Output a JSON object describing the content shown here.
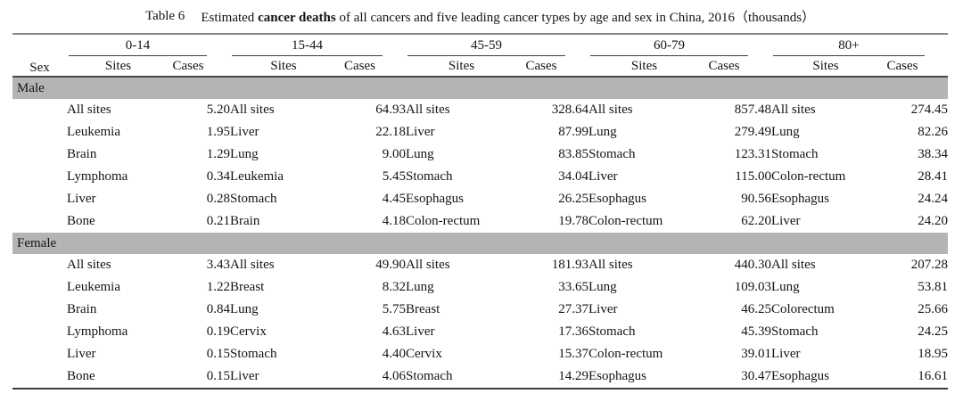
{
  "title": {
    "label": "Table 6",
    "text_before_bold": "Estimated ",
    "bold_text": "cancer deaths",
    "text_after_bold": " of all cancers and five leading cancer types by age and sex in China, 2016（thousands）"
  },
  "header": {
    "sex_label": "Sex",
    "age_groups": [
      "0-14",
      "15-44",
      "45-59",
      "60-79",
      "80+"
    ],
    "sites_label": "Sites",
    "cases_label": "Cases"
  },
  "colors": {
    "band_gray": "#b4b4b4",
    "rule_light": "#8a8a8a",
    "rule_dark": "#3d3d3d",
    "text": "#141414"
  },
  "sections": [
    {
      "sex": "Male",
      "rows": [
        {
          "cells": [
            {
              "site": "All sites",
              "cases": "5.20"
            },
            {
              "site": "All sites",
              "cases": "64.93"
            },
            {
              "site": "All sites",
              "cases": "328.64"
            },
            {
              "site": "All sites",
              "cases": "857.48"
            },
            {
              "site": "All sites",
              "cases": "274.45"
            }
          ]
        },
        {
          "cells": [
            {
              "site": "Leukemia",
              "cases": "1.95"
            },
            {
              "site": "Liver",
              "cases": "22.18"
            },
            {
              "site": "Liver",
              "cases": "87.99"
            },
            {
              "site": "Lung",
              "cases": "279.49"
            },
            {
              "site": "Lung",
              "cases": "82.26"
            }
          ]
        },
        {
          "cells": [
            {
              "site": "Brain",
              "cases": "1.29"
            },
            {
              "site": "Lung",
              "cases": "9.00"
            },
            {
              "site": "Lung",
              "cases": "83.85"
            },
            {
              "site": "Stomach",
              "cases": "123.31"
            },
            {
              "site": "Stomach",
              "cases": "38.34"
            }
          ]
        },
        {
          "cells": [
            {
              "site": "Lymphoma",
              "cases": "0.34"
            },
            {
              "site": "Leukemia",
              "cases": "5.45"
            },
            {
              "site": "Stomach",
              "cases": "34.04"
            },
            {
              "site": "Liver",
              "cases": "115.00"
            },
            {
              "site": "Colon-rectum",
              "cases": "28.41"
            }
          ]
        },
        {
          "cells": [
            {
              "site": "Liver",
              "cases": "0.28"
            },
            {
              "site": "Stomach",
              "cases": "4.45"
            },
            {
              "site": "Esophagus",
              "cases": "26.25"
            },
            {
              "site": "Esophagus",
              "cases": "90.56"
            },
            {
              "site": "Esophagus",
              "cases": "24.24"
            }
          ]
        },
        {
          "cells": [
            {
              "site": "Bone",
              "cases": "0.21"
            },
            {
              "site": "Brain",
              "cases": "4.18"
            },
            {
              "site": "Colon-rectum",
              "cases": "19.78"
            },
            {
              "site": "Colon-rectum",
              "cases": "62.20"
            },
            {
              "site": "Liver",
              "cases": "24.20"
            }
          ]
        }
      ]
    },
    {
      "sex": "Female",
      "rows": [
        {
          "cells": [
            {
              "site": "All sites",
              "cases": "3.43"
            },
            {
              "site": "All sites",
              "cases": "49.90"
            },
            {
              "site": "All sites",
              "cases": "181.93"
            },
            {
              "site": "All sites",
              "cases": "440.30"
            },
            {
              "site": "All sites",
              "cases": "207.28"
            }
          ]
        },
        {
          "cells": [
            {
              "site": "Leukemia",
              "cases": "1.22"
            },
            {
              "site": "Breast",
              "cases": "8.32"
            },
            {
              "site": "Lung",
              "cases": "33.65"
            },
            {
              "site": "Lung",
              "cases": "109.03"
            },
            {
              "site": "Lung",
              "cases": "53.81"
            }
          ]
        },
        {
          "cells": [
            {
              "site": "Brain",
              "cases": "0.84"
            },
            {
              "site": "Lung",
              "cases": "5.75"
            },
            {
              "site": "Breast",
              "cases": "27.37"
            },
            {
              "site": "Liver",
              "cases": "46.25"
            },
            {
              "site": "Colorectum",
              "cases": "25.66"
            }
          ]
        },
        {
          "cells": [
            {
              "site": "Lymphoma",
              "cases": "0.19"
            },
            {
              "site": "Cervix",
              "cases": "4.63"
            },
            {
              "site": "Liver",
              "cases": "17.36"
            },
            {
              "site": "Stomach",
              "cases": "45.39"
            },
            {
              "site": "Stomach",
              "cases": "24.25"
            }
          ]
        },
        {
          "cells": [
            {
              "site": "Liver",
              "cases": "0.15"
            },
            {
              "site": "Stomach",
              "cases": "4.40"
            },
            {
              "site": "Cervix",
              "cases": "15.37"
            },
            {
              "site": "Colon-rectum",
              "cases": "39.01"
            },
            {
              "site": "Liver",
              "cases": "18.95"
            }
          ]
        },
        {
          "cells": [
            {
              "site": "Bone",
              "cases": "0.15"
            },
            {
              "site": "Liver",
              "cases": "4.06"
            },
            {
              "site": "Stomach",
              "cases": "14.29"
            },
            {
              "site": "Esophagus",
              "cases": "30.47"
            },
            {
              "site": "Esophagus",
              "cases": "16.61"
            }
          ]
        }
      ]
    }
  ]
}
